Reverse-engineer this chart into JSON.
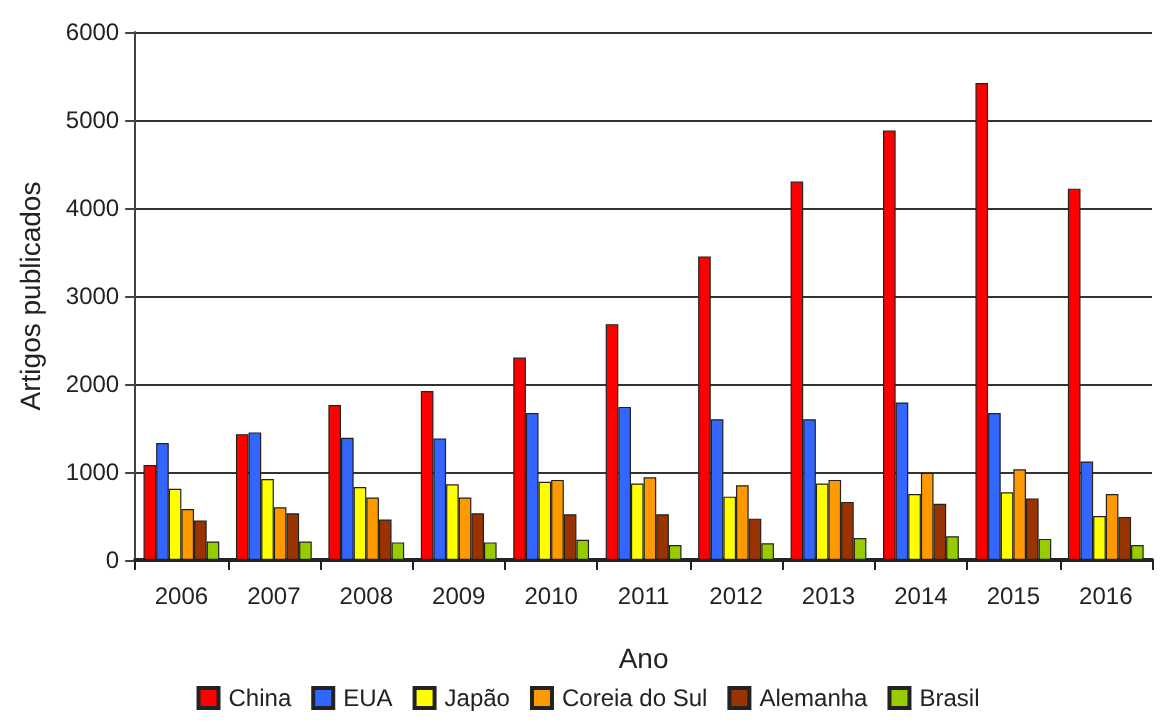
{
  "chart_data": {
    "type": "bar",
    "xlabel": "Ano",
    "ylabel": "Artigos publicados",
    "categories": [
      "2006",
      "2007",
      "2008",
      "2009",
      "2010",
      "2011",
      "2012",
      "2013",
      "2014",
      "2015",
      "2016"
    ],
    "series": [
      {
        "name": "China",
        "color": "#ff0000",
        "values": [
          1080,
          1430,
          1760,
          1920,
          2300,
          2680,
          3450,
          4300,
          4880,
          5420,
          4220
        ]
      },
      {
        "name": "EUA",
        "color": "#3366ff",
        "values": [
          1330,
          1450,
          1390,
          1380,
          1670,
          1740,
          1600,
          1600,
          1790,
          1670,
          1120
        ]
      },
      {
        "name": "Japão",
        "color": "#ffff00",
        "values": [
          810,
          920,
          830,
          860,
          890,
          870,
          720,
          870,
          750,
          770,
          500
        ]
      },
      {
        "name": "Coreia do Sul",
        "color": "#ff9900",
        "values": [
          580,
          600,
          710,
          710,
          910,
          940,
          850,
          910,
          990,
          1030,
          750
        ]
      },
      {
        "name": "Alemanha",
        "color": "#993300",
        "values": [
          450,
          530,
          460,
          530,
          520,
          520,
          470,
          660,
          640,
          700,
          490
        ]
      },
      {
        "name": "Brasil",
        "color": "#99cc00",
        "values": [
          210,
          210,
          200,
          200,
          230,
          170,
          190,
          250,
          270,
          240,
          170
        ]
      }
    ],
    "ylim": [
      0,
      6000
    ],
    "yticks": [
      0,
      1000,
      2000,
      3000,
      4000,
      5000,
      6000
    ],
    "grid": "y",
    "legend": "bottom"
  }
}
